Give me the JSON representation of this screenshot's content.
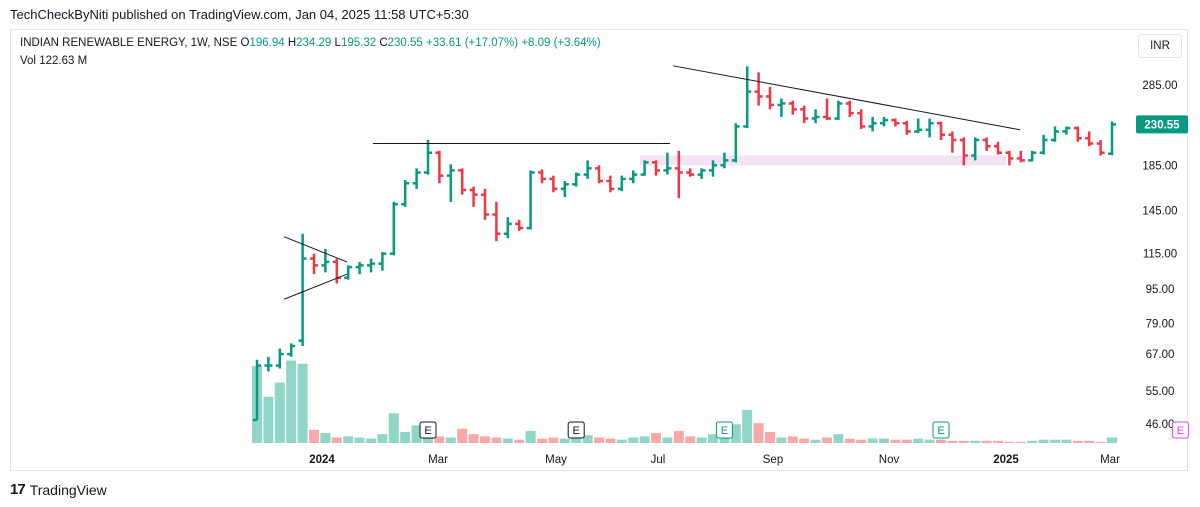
{
  "header": {
    "published_text": "TechCheckByNiti published on TradingView.com, Jan 04, 2025 11:58 UTC+5:30"
  },
  "legend": {
    "symbol": "INDIAN RENEWABLE ENERGY, 1W, NSE",
    "open_label": "O",
    "open": "196.94",
    "high_label": "H",
    "high": "234.29",
    "low_label": "L",
    "low": "195.32",
    "close_label": "C",
    "close": "230.55",
    "change": "+33.61 (+17.07%)",
    "change2": "+8.09 (+3.64%)",
    "vol_label": "Vol",
    "vol": "122.63 M"
  },
  "currency": "INR",
  "branding": {
    "name": "TradingView",
    "mark": "17"
  },
  "colors": {
    "up": "#089981",
    "down": "#f23645",
    "vol_up": "#8fd6c7",
    "vol_down": "#f7a9a7",
    "zone": "#f5e3f5",
    "earnings_past": "#131722",
    "earnings_future": "#e040fb",
    "last_price_bg": "#089981"
  },
  "chart_data": {
    "type": "ohlc_bar",
    "symbol": "INDIAN RENEWABLE ENERGY",
    "interval": "1W",
    "exchange": "NSE",
    "yaxis": {
      "scale": "log",
      "ticks": [
        285.0,
        185.0,
        145.0,
        115.0,
        95.0,
        79.0,
        67.0,
        55.0,
        46.0
      ]
    },
    "xaxis": {
      "ticks": [
        "2024",
        "Mar",
        "May",
        "Jul",
        "Sep",
        "Nov",
        "2025",
        "Mar"
      ]
    },
    "last_price": "230.55",
    "bars": [
      {
        "o": 47,
        "h": 65,
        "l": 47,
        "c": 63,
        "v": 70
      },
      {
        "o": 63,
        "h": 66,
        "l": 61,
        "c": 63,
        "v": 42
      },
      {
        "o": 63,
        "h": 69,
        "l": 62,
        "c": 67,
        "v": 55
      },
      {
        "o": 67,
        "h": 71,
        "l": 66,
        "c": 70,
        "v": 75
      },
      {
        "o": 72,
        "h": 128,
        "l": 70,
        "c": 112,
        "v": 72
      },
      {
        "o": 112,
        "h": 115,
        "l": 103,
        "c": 108,
        "v": 12
      },
      {
        "o": 108,
        "h": 118,
        "l": 104,
        "c": 110,
        "v": 9
      },
      {
        "o": 110,
        "h": 112,
        "l": 98,
        "c": 101,
        "v": 5
      },
      {
        "o": 101,
        "h": 108,
        "l": 100,
        "c": 107,
        "v": 6
      },
      {
        "o": 107,
        "h": 110,
        "l": 103,
        "c": 108,
        "v": 5
      },
      {
        "o": 108,
        "h": 112,
        "l": 104,
        "c": 109,
        "v": 4
      },
      {
        "o": 109,
        "h": 116,
        "l": 105,
        "c": 115,
        "v": 8
      },
      {
        "o": 115,
        "h": 152,
        "l": 114,
        "c": 150,
        "v": 27
      },
      {
        "o": 150,
        "h": 171,
        "l": 148,
        "c": 168,
        "v": 10
      },
      {
        "o": 168,
        "h": 182,
        "l": 163,
        "c": 178,
        "v": 16
      },
      {
        "o": 178,
        "h": 212,
        "l": 176,
        "c": 198,
        "v": 7
      },
      {
        "o": 198,
        "h": 200,
        "l": 168,
        "c": 175,
        "v": 6
      },
      {
        "o": 175,
        "h": 186,
        "l": 152,
        "c": 180,
        "v": 5
      },
      {
        "o": 180,
        "h": 182,
        "l": 158,
        "c": 162,
        "v": 13
      },
      {
        "o": 162,
        "h": 165,
        "l": 148,
        "c": 158,
        "v": 8
      },
      {
        "o": 158,
        "h": 163,
        "l": 138,
        "c": 142,
        "v": 6
      },
      {
        "o": 142,
        "h": 152,
        "l": 123,
        "c": 128,
        "v": 5
      },
      {
        "o": 128,
        "h": 140,
        "l": 125,
        "c": 135,
        "v": 4
      },
      {
        "o": 135,
        "h": 138,
        "l": 130,
        "c": 132,
        "v": 3
      },
      {
        "o": 132,
        "h": 180,
        "l": 131,
        "c": 178,
        "v": 11
      },
      {
        "o": 178,
        "h": 181,
        "l": 168,
        "c": 172,
        "v": 4
      },
      {
        "o": 172,
        "h": 175,
        "l": 160,
        "c": 163,
        "v": 5
      },
      {
        "o": 163,
        "h": 170,
        "l": 156,
        "c": 167,
        "v": 4
      },
      {
        "o": 167,
        "h": 178,
        "l": 165,
        "c": 176,
        "v": 5
      },
      {
        "o": 176,
        "h": 190,
        "l": 172,
        "c": 182,
        "v": 7
      },
      {
        "o": 182,
        "h": 185,
        "l": 168,
        "c": 170,
        "v": 5
      },
      {
        "o": 170,
        "h": 175,
        "l": 160,
        "c": 163,
        "v": 4
      },
      {
        "o": 163,
        "h": 175,
        "l": 161,
        "c": 172,
        "v": 3
      },
      {
        "o": 172,
        "h": 180,
        "l": 168,
        "c": 176,
        "v": 5
      },
      {
        "o": 176,
        "h": 190,
        "l": 175,
        "c": 188,
        "v": 6
      },
      {
        "o": 188,
        "h": 190,
        "l": 175,
        "c": 180,
        "v": 9
      },
      {
        "o": 180,
        "h": 198,
        "l": 176,
        "c": 182,
        "v": 5
      },
      {
        "o": 182,
        "h": 200,
        "l": 155,
        "c": 178,
        "v": 11
      },
      {
        "o": 178,
        "h": 182,
        "l": 174,
        "c": 176,
        "v": 6
      },
      {
        "o": 176,
        "h": 182,
        "l": 172,
        "c": 180,
        "v": 5
      },
      {
        "o": 180,
        "h": 190,
        "l": 174,
        "c": 185,
        "v": 8
      },
      {
        "o": 185,
        "h": 198,
        "l": 182,
        "c": 190,
        "v": 6
      },
      {
        "o": 190,
        "h": 232,
        "l": 188,
        "c": 228,
        "v": 17
      },
      {
        "o": 228,
        "h": 315,
        "l": 226,
        "c": 275,
        "v": 30
      },
      {
        "o": 275,
        "h": 305,
        "l": 255,
        "c": 268,
        "v": 18
      },
      {
        "o": 268,
        "h": 282,
        "l": 250,
        "c": 256,
        "v": 10
      },
      {
        "o": 256,
        "h": 265,
        "l": 240,
        "c": 258,
        "v": 5
      },
      {
        "o": 258,
        "h": 262,
        "l": 243,
        "c": 250,
        "v": 6
      },
      {
        "o": 250,
        "h": 255,
        "l": 232,
        "c": 238,
        "v": 4
      },
      {
        "o": 238,
        "h": 250,
        "l": 232,
        "c": 240,
        "v": 3
      },
      {
        "o": 240,
        "h": 265,
        "l": 236,
        "c": 238,
        "v": 5
      },
      {
        "o": 238,
        "h": 262,
        "l": 236,
        "c": 258,
        "v": 8
      },
      {
        "o": 258,
        "h": 262,
        "l": 240,
        "c": 245,
        "v": 4
      },
      {
        "o": 245,
        "h": 250,
        "l": 225,
        "c": 228,
        "v": 3
      },
      {
        "o": 228,
        "h": 240,
        "l": 222,
        "c": 232,
        "v": 4
      },
      {
        "o": 232,
        "h": 240,
        "l": 228,
        "c": 236,
        "v": 4
      },
      {
        "o": 236,
        "h": 238,
        "l": 228,
        "c": 232,
        "v": 3
      },
      {
        "o": 232,
        "h": 235,
        "l": 218,
        "c": 222,
        "v": 3
      },
      {
        "o": 222,
        "h": 238,
        "l": 220,
        "c": 224,
        "v": 4
      },
      {
        "o": 224,
        "h": 238,
        "l": 215,
        "c": 232,
        "v": 3
      },
      {
        "o": 232,
        "h": 234,
        "l": 212,
        "c": 218,
        "v": 3
      },
      {
        "o": 218,
        "h": 222,
        "l": 198,
        "c": 212,
        "v": 2
      },
      {
        "o": 212,
        "h": 215,
        "l": 185,
        "c": 195,
        "v": 2
      },
      {
        "o": 195,
        "h": 215,
        "l": 190,
        "c": 212,
        "v": 2
      },
      {
        "o": 212,
        "h": 215,
        "l": 200,
        "c": 205,
        "v": 2
      },
      {
        "o": 205,
        "h": 210,
        "l": 196,
        "c": 198,
        "v": 2
      },
      {
        "o": 198,
        "h": 200,
        "l": 185,
        "c": 192,
        "v": 1
      },
      {
        "o": 192,
        "h": 200,
        "l": 188,
        "c": 190,
        "v": 1
      },
      {
        "o": 190,
        "h": 200,
        "l": 189,
        "c": 198,
        "v": 2
      },
      {
        "o": 198,
        "h": 218,
        "l": 196,
        "c": 212,
        "v": 3
      },
      {
        "o": 212,
        "h": 228,
        "l": 210,
        "c": 222,
        "v": 3
      },
      {
        "o": 222,
        "h": 228,
        "l": 218,
        "c": 226,
        "v": 3
      },
      {
        "o": 226,
        "h": 228,
        "l": 210,
        "c": 214,
        "v": 2
      },
      {
        "o": 214,
        "h": 222,
        "l": 205,
        "c": 208,
        "v": 2
      },
      {
        "o": 208,
        "h": 212,
        "l": 195,
        "c": 198,
        "v": 1
      },
      {
        "o": 196.94,
        "h": 234.29,
        "l": 195.32,
        "c": 230.55,
        "v": 5
      }
    ],
    "earnings_markers": [
      {
        "bar": 15,
        "future": false
      },
      {
        "bar": 28,
        "future": false
      },
      {
        "bar": 41,
        "future": false
      },
      {
        "bar": 60,
        "future": false
      },
      {
        "bar": 81,
        "future": true
      }
    ],
    "annotations": [
      "descending trendline from Jul high",
      "horizontal resistance ~208",
      "support zone ~185-195",
      "symmetrical triangle Dec-Jan"
    ]
  }
}
